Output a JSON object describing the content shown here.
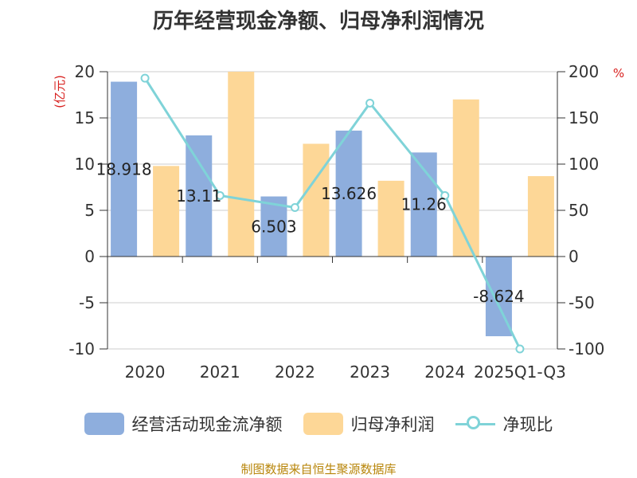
{
  "title": "历年经营现金净额、归母净利润情况",
  "source": "制图数据来自恒生聚源数据库",
  "colors": {
    "cash": "#8eaedd",
    "profit": "#fdd797",
    "ratio": "#7fd3d8",
    "unit": "#d8201e",
    "source": "#b8860b"
  },
  "legend": {
    "cash": "经营活动现金流净额",
    "profit": "归母净利润",
    "ratio": "净现比"
  },
  "chart_data": {
    "type": "bar",
    "title": "历年经营现金净额、归母净利润情况",
    "categories": [
      "2020",
      "2021",
      "2022",
      "2023",
      "2024",
      "2025Q1-Q3"
    ],
    "left_unit": "(亿元)",
    "right_unit": "%",
    "left_ylim": [
      -10,
      20
    ],
    "left_ticks": [
      20,
      15,
      10,
      5,
      0,
      -5,
      -10
    ],
    "right_ylim": [
      -100,
      200
    ],
    "right_ticks": [
      200,
      150,
      100,
      50,
      0,
      -50,
      -100
    ],
    "grid": true,
    "legend_position": "bottom",
    "series": [
      {
        "name": "经营活动现金流净额",
        "kind": "bar",
        "axis": "left",
        "values": [
          18.918,
          13.11,
          6.503,
          13.626,
          11.26,
          -8.624
        ],
        "labels": [
          "18.918",
          "13.11",
          "6.503",
          "13.626",
          "11.26",
          "-8.624"
        ]
      },
      {
        "name": "归母净利润",
        "kind": "bar",
        "axis": "left",
        "values": [
          9.8,
          20.0,
          12.2,
          8.2,
          17.0,
          8.7
        ]
      },
      {
        "name": "净现比",
        "kind": "line",
        "axis": "right",
        "values": [
          193,
          66,
          53,
          166,
          66,
          -100
        ]
      }
    ]
  }
}
